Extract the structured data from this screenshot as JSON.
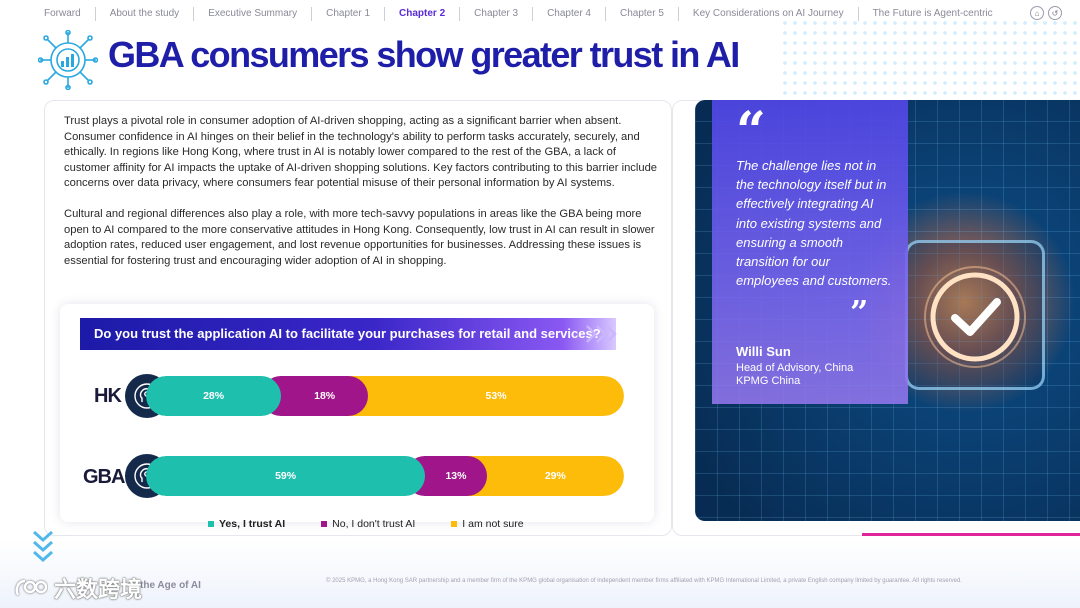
{
  "nav": {
    "items": [
      {
        "label": "Forward",
        "active": false
      },
      {
        "label": "About the study",
        "active": false
      },
      {
        "label": "Executive Summary",
        "active": false
      },
      {
        "label": "Chapter 1",
        "active": false
      },
      {
        "label": "Chapter 2",
        "active": true
      },
      {
        "label": "Chapter 3",
        "active": false
      },
      {
        "label": "Chapter 4",
        "active": false
      },
      {
        "label": "Chapter 5",
        "active": false
      },
      {
        "label": "Key Considerations on AI Journey",
        "active": false
      },
      {
        "label": "The Future is Agent-centric",
        "active": false
      }
    ],
    "icons": [
      "home-icon",
      "back-icon"
    ]
  },
  "header": {
    "title": "GBA consumers show greater trust in AI",
    "icon": "ai-network-icon"
  },
  "body": {
    "paragraph_1": "Trust plays a pivotal role in consumer adoption of AI-driven shopping, acting as a significant barrier when absent. Consumer confidence in AI hinges on their belief in the technology's ability to perform tasks accurately, securely, and ethically. In regions like Hong Kong, where trust in AI is notably lower compared to the rest of the GBA, a lack of customer affinity for AI impacts the uptake of AI-driven shopping solutions. Key factors contributing to this barrier include concerns over data privacy, where consumers fear potential misuse of their personal information by AI systems.",
    "paragraph_2": "Cultural and regional differences also play a role, with more tech-savvy populations in areas like the GBA being more open to AI compared to the more conservative attitudes in Hong Kong. Consequently, low trust in AI can result in slower adoption rates, reduced user engagement, and lost revenue opportunities for businesses. Addressing these issues is essential for fostering trust and encouraging wider adoption of AI in shopping."
  },
  "chart_data": {
    "type": "bar",
    "stacked": true,
    "orientation": "horizontal",
    "title": "Do you trust the application AI to facilitate your purchases for retail and services?",
    "categories": [
      "HK",
      "GBA"
    ],
    "series": [
      {
        "name": "Yes, I trust AI",
        "values": [
          28,
          59
        ],
        "color": "#1fbfae"
      },
      {
        "name": "No, I don't trust AI",
        "values": [
          18,
          13
        ],
        "color": "#a0168a"
      },
      {
        "name": "I am not sure",
        "values": [
          53,
          29
        ],
        "color": "#fdbb0a"
      }
    ],
    "value_labels": {
      "HK": [
        "28%",
        "18%",
        "53%"
      ],
      "GBA": [
        "59%",
        "13%",
        "29%"
      ]
    },
    "legend_position": "bottom"
  },
  "quote": {
    "text": "The challenge lies not in the technology itself but in effectively integrating AI into existing systems and ensuring a smooth transition for our employees and customers.",
    "name": "Willi Sun",
    "role_line_1": "Head of  Advisory, China",
    "role_line_2": "KPMG China"
  },
  "footer": {
    "left_text": "the Age of AI",
    "watermark": "六数跨境",
    "copyright": "© 2025 KPMG, a Hong Kong SAR partnership and a member firm of the KPMG global organisation of independent member firms affiliated with KPMG International Limited, a private English company limited by guarantee. All rights reserved."
  },
  "colors": {
    "title": "#1e1ea8",
    "active_nav": "#5a2bd6",
    "yes": "#1fbfae",
    "no": "#a0168a",
    "unsure": "#fdbb0a",
    "accent_pink": "#e0249a"
  }
}
